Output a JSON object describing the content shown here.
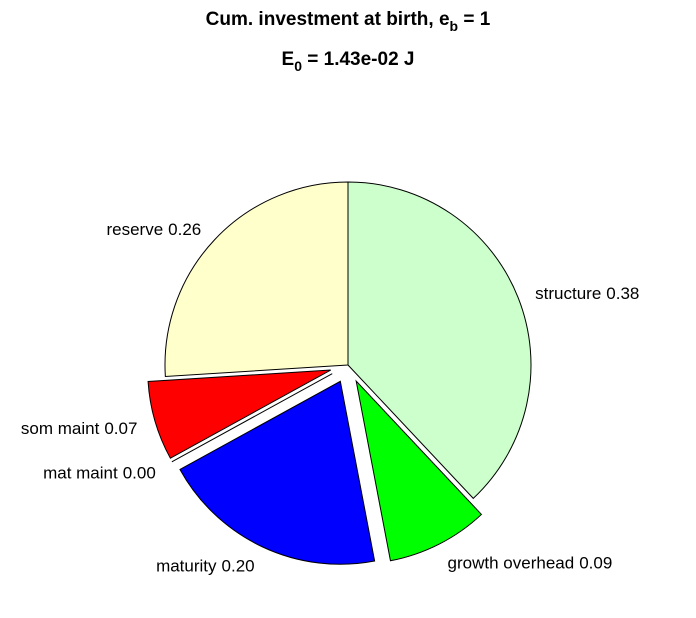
{
  "chart_data": {
    "type": "pie",
    "title": [
      "Cum. investment at birth, e",
      "b",
      " = 1"
    ],
    "subtitle": [
      "E",
      "0",
      " = 1.43e-02 J"
    ],
    "categories": [
      "structure",
      "growth overhead",
      "maturity",
      "mat maint",
      "som maint",
      "reserve"
    ],
    "values": [
      0.38,
      0.09,
      0.2,
      0,
      0.07,
      0.26
    ],
    "value_labels": [
      "0.38",
      "0.09",
      "0.20",
      "0.00",
      "0.07",
      "0.26"
    ],
    "colors": [
      "#ccffcc",
      "#00ff00",
      "#0000ff",
      "#ffffff",
      "#ff0000",
      "#ffffcc"
    ],
    "explode": [
      false,
      true,
      true,
      true,
      true,
      false
    ]
  }
}
